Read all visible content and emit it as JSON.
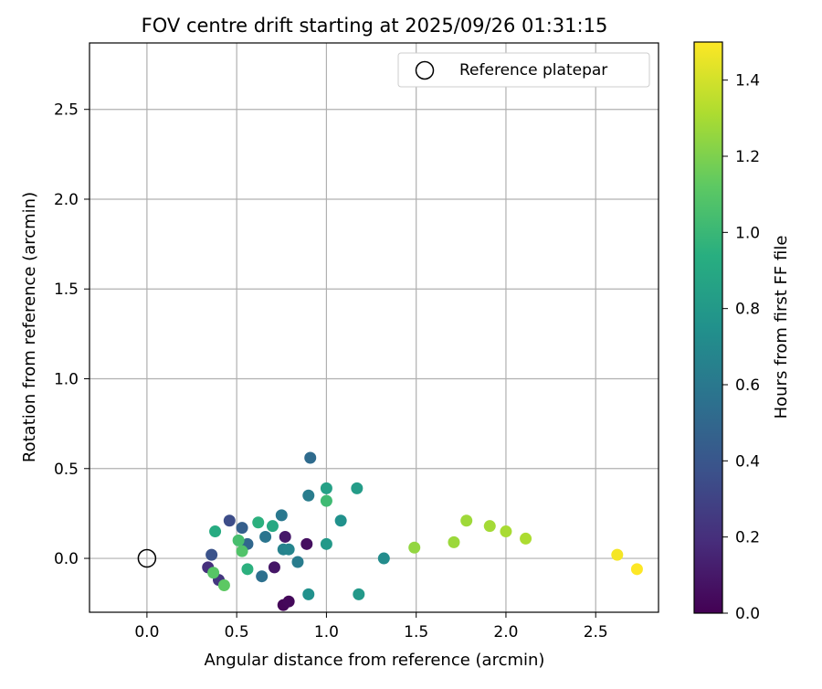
{
  "chart_data": {
    "type": "scatter",
    "title": "FOV centre drift starting at 2025/09/26 01:31:15",
    "xlabel": "Angular distance from reference (arcmin)",
    "ylabel": "Rotation from reference (arcmin)",
    "xlim": [
      -0.32,
      2.85
    ],
    "ylim": [
      -0.3,
      2.87
    ],
    "xticks": [
      "0.0",
      "0.5",
      "1.0",
      "1.5",
      "2.0",
      "2.5"
    ],
    "yticks": [
      "0.0",
      "0.5",
      "1.0",
      "1.5",
      "2.0",
      "2.5"
    ],
    "grid": true,
    "legend": {
      "position": "top-right",
      "entries": [
        "Reference platepar"
      ]
    },
    "reference_point": {
      "name": "Reference platepar",
      "x": 0.0,
      "y": 0.0
    },
    "colorbar": {
      "label": "Hours from first FF file",
      "colormap": "viridis",
      "range": [
        0.0,
        1.5
      ],
      "ticks": [
        "0.0",
        "0.2",
        "0.4",
        "0.6",
        "0.8",
        "1.0",
        "1.2",
        "1.4"
      ]
    },
    "points": [
      {
        "x": 0.76,
        "y": -0.26,
        "c": 0.02
      },
      {
        "x": 0.79,
        "y": -0.24,
        "c": 0.03
      },
      {
        "x": 0.71,
        "y": -0.05,
        "c": 0.09
      },
      {
        "x": 0.89,
        "y": 0.08,
        "c": 0.06
      },
      {
        "x": 0.77,
        "y": 0.12,
        "c": 0.1
      },
      {
        "x": 0.34,
        "y": -0.05,
        "c": 0.2
      },
      {
        "x": 0.4,
        "y": -0.12,
        "c": 0.24
      },
      {
        "x": 0.46,
        "y": 0.21,
        "c": 0.35
      },
      {
        "x": 0.36,
        "y": 0.02,
        "c": 0.38
      },
      {
        "x": 0.53,
        "y": 0.17,
        "c": 0.45
      },
      {
        "x": 0.56,
        "y": 0.08,
        "c": 0.5
      },
      {
        "x": 0.64,
        "y": -0.1,
        "c": 0.55
      },
      {
        "x": 0.66,
        "y": 0.12,
        "c": 0.58
      },
      {
        "x": 0.75,
        "y": 0.24,
        "c": 0.6
      },
      {
        "x": 0.91,
        "y": 0.56,
        "c": 0.52
      },
      {
        "x": 0.9,
        "y": 0.35,
        "c": 0.62
      },
      {
        "x": 0.76,
        "y": 0.05,
        "c": 0.66
      },
      {
        "x": 0.79,
        "y": 0.05,
        "c": 0.68
      },
      {
        "x": 0.84,
        "y": -0.02,
        "c": 0.62
      },
      {
        "x": 0.9,
        "y": -0.2,
        "c": 0.75
      },
      {
        "x": 1.0,
        "y": 0.08,
        "c": 0.8
      },
      {
        "x": 1.08,
        "y": 0.21,
        "c": 0.75
      },
      {
        "x": 1.0,
        "y": 0.39,
        "c": 0.85
      },
      {
        "x": 1.17,
        "y": 0.39,
        "c": 0.82
      },
      {
        "x": 1.18,
        "y": -0.2,
        "c": 0.8
      },
      {
        "x": 1.32,
        "y": 0.0,
        "c": 0.72
      },
      {
        "x": 0.7,
        "y": 0.18,
        "c": 0.9
      },
      {
        "x": 0.62,
        "y": 0.2,
        "c": 0.95
      },
      {
        "x": 0.38,
        "y": 0.15,
        "c": 0.92
      },
      {
        "x": 0.56,
        "y": -0.06,
        "c": 0.95
      },
      {
        "x": 1.0,
        "y": 0.32,
        "c": 1.02
      },
      {
        "x": 0.51,
        "y": 0.1,
        "c": 1.05
      },
      {
        "x": 0.53,
        "y": 0.04,
        "c": 1.08
      },
      {
        "x": 0.37,
        "y": -0.08,
        "c": 1.1
      },
      {
        "x": 0.43,
        "y": -0.15,
        "c": 1.12
      },
      {
        "x": 1.49,
        "y": 0.06,
        "c": 1.25
      },
      {
        "x": 1.71,
        "y": 0.09,
        "c": 1.27
      },
      {
        "x": 1.78,
        "y": 0.21,
        "c": 1.28
      },
      {
        "x": 1.91,
        "y": 0.18,
        "c": 1.29
      },
      {
        "x": 2.0,
        "y": 0.15,
        "c": 1.3
      },
      {
        "x": 2.11,
        "y": 0.11,
        "c": 1.31
      },
      {
        "x": 2.62,
        "y": 0.02,
        "c": 1.48
      },
      {
        "x": 2.73,
        "y": -0.06,
        "c": 1.5
      }
    ]
  }
}
